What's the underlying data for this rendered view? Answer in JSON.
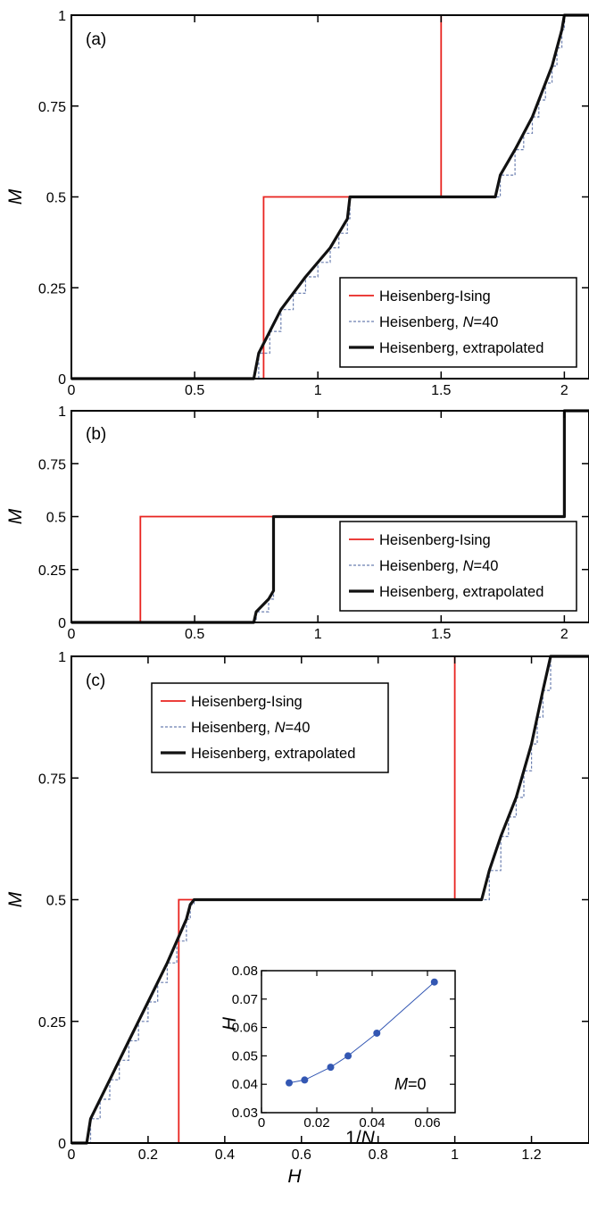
{
  "figure": {
    "colors": {
      "ising": "#e8231f",
      "heis40": "#6b7fb0",
      "extrap": "#111111",
      "inset": "#3357b3"
    }
  },
  "legend": {
    "series": [
      {
        "key": "ising",
        "label": "Heisenberg-Ising",
        "label_parts": [
          "Heisenberg-Ising"
        ]
      },
      {
        "key": "heis40",
        "label": "Heisenberg, N=40",
        "label_parts": [
          "Heisenberg, ",
          "N",
          "=40"
        ]
      },
      {
        "key": "extrap",
        "label": "Heisenberg, extrapolated",
        "label_parts": [
          "Heisenberg, extrapolated"
        ]
      }
    ]
  },
  "chart_data": [
    {
      "id": "a",
      "type": "line",
      "panel_label": "(a)",
      "xlabel": "",
      "ylabel": "M",
      "xlim": [
        0,
        2.1
      ],
      "ylim": [
        0,
        1
      ],
      "xticks": [
        0,
        0.5,
        1,
        1.5,
        2
      ],
      "xtick_labels": [
        "0",
        "0.5",
        "1",
        "1.5",
        "2"
      ],
      "yticks": [
        0,
        0.25,
        0.5,
        0.75,
        1
      ],
      "ytick_labels": [
        "0",
        "0.25",
        "0.5",
        "0.75",
        "1"
      ],
      "legend_position": "right",
      "series": [
        {
          "name": "Heisenberg-Ising",
          "key": "ising",
          "x": [
            0,
            0.78,
            0.78,
            1.5,
            1.5,
            2.1
          ],
          "y": [
            0,
            0,
            0.5,
            0.5,
            1,
            1
          ]
        },
        {
          "name": "Heisenberg, N=40",
          "key": "heis40",
          "steps": 20,
          "x": [
            0,
            0.74,
            0.76,
            0.85,
            0.95,
            1.05,
            1.12,
            1.13,
            1.72,
            1.74,
            1.8,
            1.87,
            1.95,
            1.99,
            2.0,
            2.1
          ],
          "y": [
            0,
            0,
            0.07,
            0.19,
            0.28,
            0.36,
            0.44,
            0.5,
            0.5,
            0.56,
            0.63,
            0.72,
            0.86,
            0.96,
            1,
            1
          ]
        },
        {
          "name": "Heisenberg, extrapolated",
          "key": "extrap",
          "x": [
            0,
            0.74,
            0.76,
            0.85,
            0.95,
            1.05,
            1.12,
            1.13,
            1.72,
            1.74,
            1.8,
            1.87,
            1.95,
            1.99,
            2.0,
            2.1
          ],
          "y": [
            0,
            0,
            0.07,
            0.19,
            0.28,
            0.36,
            0.44,
            0.5,
            0.5,
            0.56,
            0.63,
            0.72,
            0.86,
            0.96,
            1,
            1
          ]
        }
      ]
    },
    {
      "id": "b",
      "type": "line",
      "panel_label": "(b)",
      "xlabel": "",
      "ylabel": "M",
      "xlim": [
        0,
        2.1
      ],
      "ylim": [
        0,
        1
      ],
      "xticks": [
        0,
        0.5,
        1,
        1.5,
        2
      ],
      "xtick_labels": [
        "0",
        "0.5",
        "1",
        "1.5",
        "2"
      ],
      "yticks": [
        0,
        0.25,
        0.5,
        0.75,
        1
      ],
      "ytick_labels": [
        "0",
        "0.25",
        "0.5",
        "0.75",
        "1"
      ],
      "legend_position": "bottom-right",
      "series": [
        {
          "name": "Heisenberg-Ising",
          "key": "ising",
          "x": [
            0,
            0.28,
            0.28,
            2.0,
            2.0,
            2.1
          ],
          "y": [
            0,
            0,
            0.5,
            0.5,
            1,
            1
          ]
        },
        {
          "name": "Heisenberg, N=40",
          "key": "heis40",
          "steps": 10,
          "x": [
            0,
            0.74,
            0.75,
            0.8,
            0.82,
            0.82,
            2.0,
            2.0,
            2.1
          ],
          "y": [
            0,
            0,
            0.05,
            0.11,
            0.15,
            0.5,
            0.5,
            1,
            1
          ]
        },
        {
          "name": "Heisenberg, extrapolated",
          "key": "extrap",
          "x": [
            0,
            0.74,
            0.75,
            0.8,
            0.82,
            0.82,
            2.0,
            2.0,
            2.1
          ],
          "y": [
            0,
            0,
            0.05,
            0.11,
            0.15,
            0.5,
            0.5,
            1,
            1
          ]
        }
      ]
    },
    {
      "id": "c",
      "type": "line",
      "panel_label": "(c)",
      "xlabel": "H",
      "ylabel": "M",
      "xlim": [
        0,
        1.35
      ],
      "ylim": [
        0,
        1
      ],
      "xticks": [
        0,
        0.2,
        0.4,
        0.6,
        0.8,
        1,
        1.2
      ],
      "xtick_labels": [
        "0",
        "0.2",
        "0.4",
        "0.6",
        "0.8",
        "1",
        "1.2"
      ],
      "yticks": [
        0,
        0.25,
        0.5,
        0.75,
        1
      ],
      "ytick_labels": [
        "0",
        "0.25",
        "0.5",
        "0.75",
        "1"
      ],
      "legend_position": "top-left",
      "series": [
        {
          "name": "Heisenberg-Ising",
          "key": "ising",
          "x": [
            0,
            0.28,
            0.28,
            1.0,
            1.0,
            1.35
          ],
          "y": [
            0,
            0,
            0.5,
            0.5,
            1,
            1
          ]
        },
        {
          "name": "Heisenberg, N=40",
          "key": "heis40",
          "steps": 20,
          "x": [
            0,
            0.04,
            0.05,
            0.1,
            0.15,
            0.2,
            0.25,
            0.3,
            0.31,
            0.32,
            1.07,
            1.09,
            1.12,
            1.16,
            1.2,
            1.23,
            1.25,
            1.35
          ],
          "y": [
            0,
            0,
            0.05,
            0.13,
            0.21,
            0.29,
            0.37,
            0.46,
            0.49,
            0.5,
            0.5,
            0.56,
            0.63,
            0.71,
            0.82,
            0.93,
            1,
            1
          ]
        },
        {
          "name": "Heisenberg, extrapolated",
          "key": "extrap",
          "x": [
            0,
            0.04,
            0.05,
            0.1,
            0.15,
            0.2,
            0.25,
            0.3,
            0.31,
            0.32,
            1.07,
            1.09,
            1.12,
            1.16,
            1.2,
            1.23,
            1.25,
            1.35
          ],
          "y": [
            0,
            0,
            0.05,
            0.13,
            0.21,
            0.29,
            0.37,
            0.46,
            0.49,
            0.5,
            0.5,
            0.56,
            0.63,
            0.71,
            0.82,
            0.93,
            1,
            1
          ]
        }
      ]
    },
    {
      "id": "inset",
      "type": "line",
      "xlabel": "1/N",
      "ylabel": "H",
      "annotation": "M=0",
      "xlim": [
        0,
        0.07
      ],
      "ylim": [
        0.03,
        0.08
      ],
      "xticks": [
        0,
        0.02,
        0.04,
        0.06
      ],
      "xtick_labels": [
        "0",
        "0.02",
        "0.04",
        "0.06"
      ],
      "yticks": [
        0.03,
        0.04,
        0.05,
        0.06,
        0.07,
        0.08
      ],
      "ytick_labels": [
        "0.03",
        "0.04",
        "0.05",
        "0.06",
        "0.07",
        "0.08"
      ],
      "series": [
        {
          "key": "inset",
          "markers": true,
          "x": [
            0.01,
            0.0156,
            0.025,
            0.0313,
            0.0417,
            0.0625
          ],
          "y": [
            0.0405,
            0.0415,
            0.046,
            0.05,
            0.058,
            0.076
          ]
        }
      ]
    }
  ]
}
